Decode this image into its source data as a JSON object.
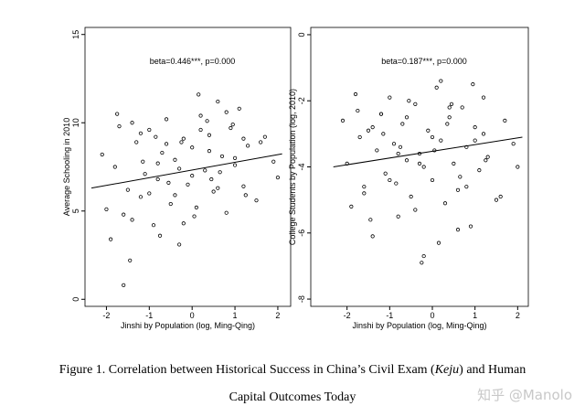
{
  "chart_data": [
    {
      "type": "scatter",
      "annotation": "beta=0.446***, p=0.000",
      "x_label": "Jinshi by Population (log, Ming-Qing)",
      "y_label": "Average Schooling in 2010",
      "color": "#000000",
      "xlim": [
        -2.5,
        2.3
      ],
      "xticks": [
        -2,
        -1,
        0,
        1,
        2
      ],
      "ylim": [
        -0.4,
        15.4
      ],
      "yticks": [
        0,
        5,
        10,
        15
      ],
      "x": [
        -2.1,
        -2.0,
        -1.9,
        -1.8,
        -1.7,
        -1.6,
        -1.5,
        -1.4,
        -1.3,
        -1.2,
        -1.1,
        -1.0,
        -0.9,
        -0.8,
        -0.7,
        -0.6,
        -0.5,
        -0.4,
        -0.3,
        -0.2,
        -0.1,
        0,
        0.1,
        0.2,
        0.3,
        0.4,
        0.5,
        0.6,
        0.7,
        0.8,
        0.9,
        1.0,
        1.1,
        1.2,
        1.3,
        1.5,
        1.7,
        1.9,
        2.0,
        -1.75,
        -1.45,
        -1.15,
        -0.85,
        -0.55,
        -0.25,
        0.05,
        0.35,
        0.65,
        0.95,
        1.25,
        -1.6,
        -1.2,
        -0.8,
        -0.4,
        0,
        0.4,
        0.8,
        1.2,
        -0.6,
        -0.2,
        0.2,
        0.6,
        1.0,
        -1.0,
        -1.4,
        -0.3,
        0.15,
        0.45,
        -0.75,
        1.6
      ],
      "values": [
        8.2,
        5.1,
        3.4,
        7.5,
        9.8,
        0.8,
        6.2,
        4.5,
        8.9,
        5.8,
        7.1,
        9.6,
        4.2,
        6.8,
        8.3,
        10.2,
        5.4,
        7.9,
        3.1,
        9.1,
        6.5,
        8.6,
        5.2,
        10.4,
        7.3,
        9.3,
        6.1,
        11.2,
        8.1,
        4.9,
        9.7,
        7.6,
        10.8,
        6.4,
        8.7,
        5.6,
        9.2,
        7.8,
        6.9,
        10.5,
        2.2,
        7.8,
        9.2,
        6.6,
        8.9,
        4.7,
        10.1,
        7.2,
        9.9,
        5.9,
        4.8,
        9.4,
        7.7,
        5.9,
        7.0,
        8.4,
        10.6,
        9.1,
        8.8,
        4.3,
        9.6,
        6.3,
        8.0,
        6.0,
        10.0,
        7.4,
        11.6,
        6.8,
        3.6,
        8.9
      ],
      "fit": {
        "x": [
          -2.35,
          2.1
        ],
        "values": [
          6.3,
          8.24
        ]
      }
    },
    {
      "type": "scatter",
      "annotation": "beta=0.187***, p=0.000",
      "x_label": "Jinshi by Population (log, Ming-Qing)",
      "y_label": "College Students by Population (log, 2010)",
      "color": "#000000",
      "xlim": [
        -2.85,
        2.25
      ],
      "xticks": [
        -2,
        -1,
        0,
        1,
        2
      ],
      "ylim": [
        -8.22,
        0.22
      ],
      "yticks": [
        0,
        -2,
        -4,
        -6,
        -8
      ],
      "x": [
        -2.1,
        -2.0,
        -1.9,
        -1.8,
        -1.7,
        -1.6,
        -1.5,
        -1.4,
        -1.3,
        -1.2,
        -1.1,
        -1.0,
        -0.9,
        -0.8,
        -0.7,
        -0.6,
        -0.5,
        -0.4,
        -0.3,
        -0.2,
        -0.1,
        0,
        0.1,
        0.2,
        0.3,
        0.4,
        0.5,
        0.6,
        0.7,
        0.8,
        0.9,
        1.0,
        1.1,
        1.2,
        1.3,
        1.5,
        1.7,
        1.9,
        2.0,
        -1.75,
        -1.45,
        -1.15,
        -0.85,
        -0.55,
        -0.25,
        0.05,
        0.35,
        0.65,
        0.95,
        1.25,
        -1.6,
        -1.2,
        -0.8,
        -0.4,
        0,
        0.4,
        0.8,
        1.2,
        -0.6,
        -0.2,
        0.2,
        0.6,
        1.0,
        -1.0,
        -1.4,
        -0.3,
        0.15,
        0.45,
        -0.75,
        1.6
      ],
      "values": [
        -2.6,
        -3.9,
        -5.2,
        -1.8,
        -3.1,
        -4.6,
        -2.9,
        -6.1,
        -3.5,
        -2.4,
        -4.2,
        -1.9,
        -3.3,
        -5.5,
        -2.7,
        -3.8,
        -4.9,
        -2.1,
        -3.6,
        -6.7,
        -2.9,
        -4.4,
        -1.6,
        -3.2,
        -5.1,
        -2.5,
        -3.9,
        -4.7,
        -2.2,
        -3.4,
        -5.8,
        -2.8,
        -4.1,
        -1.9,
        -3.7,
        -5.0,
        -2.6,
        -3.3,
        -4.0,
        -2.3,
        -5.6,
        -3.0,
        -4.5,
        -2.0,
        -6.9,
        -3.5,
        -2.7,
        -4.3,
        -1.5,
        -3.8,
        -4.8,
        -2.4,
        -3.6,
        -5.3,
        -3.1,
        -2.2,
        -4.6,
        -3.0,
        -2.5,
        -4.0,
        -1.4,
        -5.9,
        -3.2,
        -4.4,
        -2.8,
        -3.9,
        -6.3,
        -2.1,
        -3.4,
        -4.9
      ],
      "fit": {
        "x": [
          -2.32,
          2.11
        ],
        "values": [
          -4.0,
          -3.1
        ]
      }
    }
  ],
  "caption": {
    "before": "Figure 1. Correlation between Historical Success in China’s Civil Exam (",
    "emphasis": "Keju",
    "after": ") and Human",
    "line2": "Capital Outcomes Today"
  },
  "watermark": "知乎 @Manolo"
}
